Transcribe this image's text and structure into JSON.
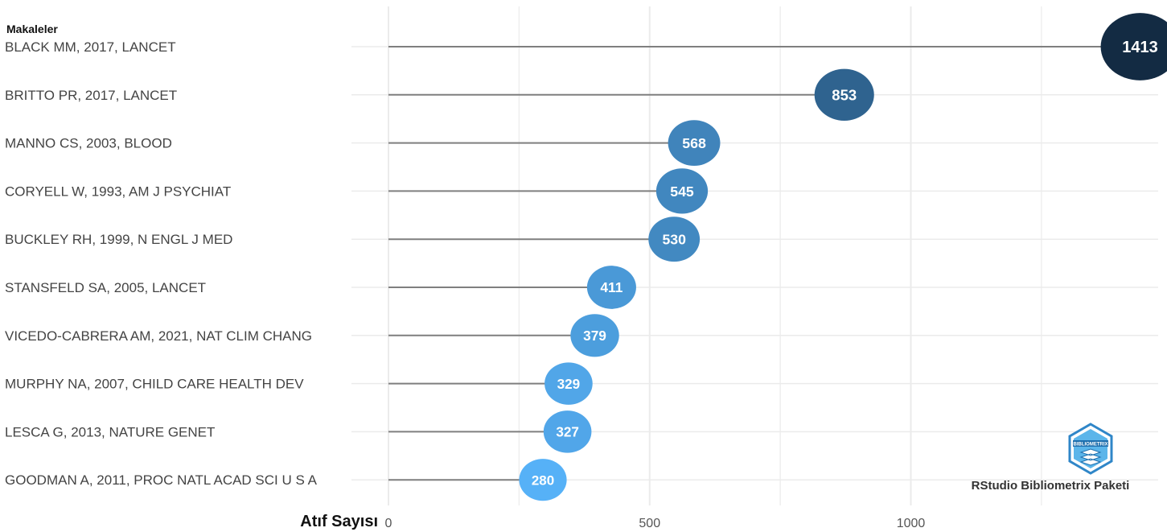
{
  "chart_data": {
    "type": "scatter",
    "ylabel": "Makaleler",
    "xlabel": "Atıf Sayısı",
    "xlim": [
      0,
      1413
    ],
    "x_ticks": [
      0,
      500,
      1000
    ],
    "grid": true,
    "categories": [
      "BLACK MM, 2017, LANCET",
      "BRITTO PR, 2017, LANCET",
      "MANNO CS, 2003, BLOOD",
      "CORYELL W, 1993, AM J PSYCHIAT",
      "BUCKLEY RH, 1999, N ENGL J MED",
      "STANSFELD SA, 2005, LANCET",
      "VICEDO-CABRERA AM, 2021, NAT CLIM CHANG",
      "MURPHY NA, 2007, CHILD CARE HEALTH DEV",
      "LESCA G, 2013, NATURE GENET",
      "GOODMAN A, 2011, PROC NATL ACAD SCI U S A"
    ],
    "values": [
      1413,
      853,
      568,
      545,
      530,
      411,
      379,
      329,
      327,
      280
    ],
    "data_labels": [
      "1413",
      "853",
      "568",
      "545",
      "530",
      "411",
      "379",
      "329",
      "327",
      "280"
    ],
    "colors": {
      "low": "#56b1f7",
      "high": "#132b43",
      "segment": "#7f7f7f",
      "grid": "#ebebeb"
    }
  },
  "watermark": {
    "logo_text": "BIBLIOMETRIX",
    "caption": "RStudio Bibliometrix Paketi"
  }
}
